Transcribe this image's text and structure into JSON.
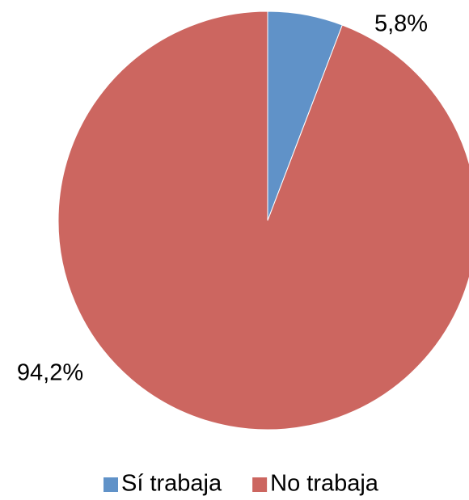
{
  "chart_data": {
    "type": "pie",
    "categories": [
      "Sí trabaja",
      "No trabaja"
    ],
    "values": [
      5.8,
      94.2
    ],
    "value_labels": [
      "5,8%",
      "94,2%"
    ],
    "colors": [
      "#6092c8",
      "#cc6660"
    ],
    "legend": "bottom"
  }
}
